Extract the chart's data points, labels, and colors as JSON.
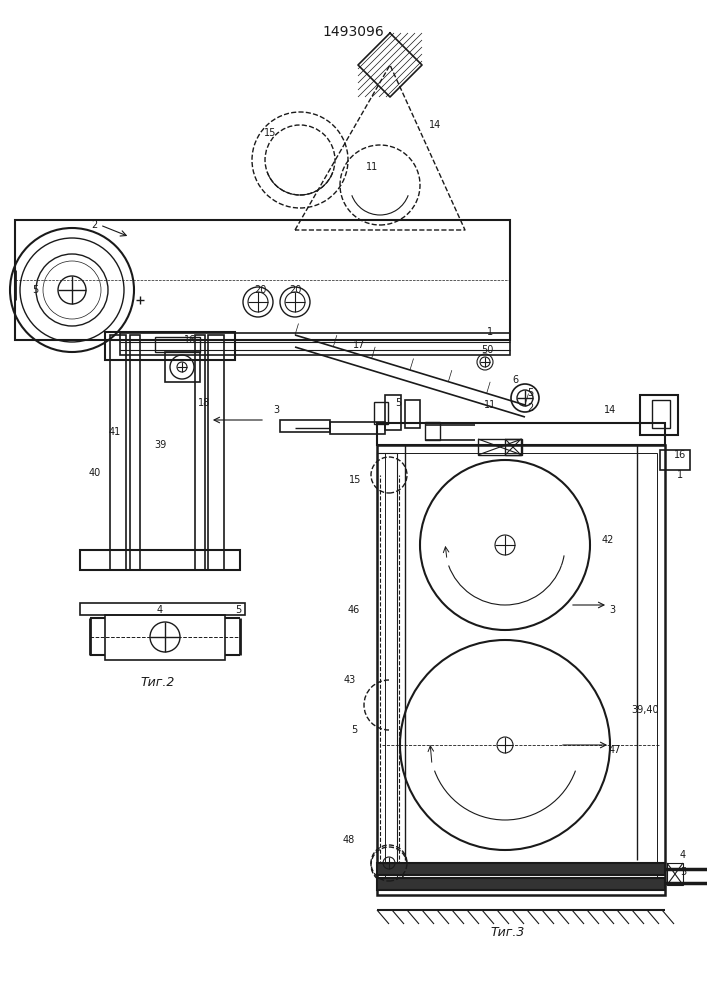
{
  "bg_color": "#ffffff",
  "line_color": "#1a1a1a",
  "title": "1493096",
  "fig2_caption": "Τиг.2",
  "fig3_caption": "Τиг.3"
}
